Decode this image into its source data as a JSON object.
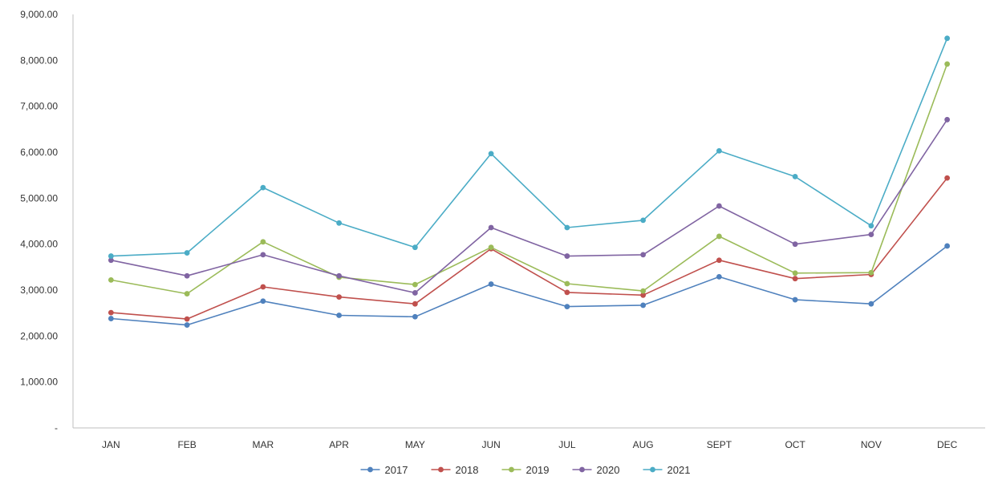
{
  "chart_data": {
    "type": "line",
    "title": "",
    "xlabel": "",
    "ylabel": "",
    "categories": [
      "JAN",
      "FEB",
      "MAR",
      "APR",
      "MAY",
      "JUN",
      "JUL",
      "AUG",
      "SEPT",
      "OCT",
      "NOV",
      "DEC"
    ],
    "ylim": [
      0,
      9000
    ],
    "yticks": [
      0,
      1000,
      2000,
      3000,
      4000,
      5000,
      6000,
      7000,
      8000,
      9000
    ],
    "ytick_labels": [
      "-",
      "1,000.00",
      "2,000.00",
      "3,000.00",
      "4,000.00",
      "5,000.00",
      "6,000.00",
      "7,000.00",
      "8,000.00",
      "9,000.00"
    ],
    "grid": false,
    "legend_position": "bottom",
    "series": [
      {
        "name": "2017",
        "color": "#4f81bd",
        "values": [
          2380,
          2240,
          2760,
          2450,
          2420,
          3130,
          2640,
          2670,
          3290,
          2790,
          2700,
          3960
        ]
      },
      {
        "name": "2018",
        "color": "#c0504d",
        "values": [
          2510,
          2370,
          3070,
          2850,
          2700,
          3900,
          2950,
          2890,
          3650,
          3250,
          3340,
          5440
        ]
      },
      {
        "name": "2019",
        "color": "#9bbb59",
        "values": [
          3220,
          2920,
          4050,
          3280,
          3120,
          3930,
          3140,
          2980,
          4170,
          3370,
          3380,
          7920
        ]
      },
      {
        "name": "2020",
        "color": "#8064a2",
        "values": [
          3650,
          3310,
          3770,
          3310,
          2940,
          4360,
          3740,
          3770,
          4830,
          4000,
          4210,
          6710
        ]
      },
      {
        "name": "2021",
        "color": "#4bacc6",
        "values": [
          3740,
          3810,
          5230,
          4460,
          3930,
          5970,
          4360,
          4520,
          6030,
          5470,
          4400,
          8480
        ]
      }
    ]
  }
}
